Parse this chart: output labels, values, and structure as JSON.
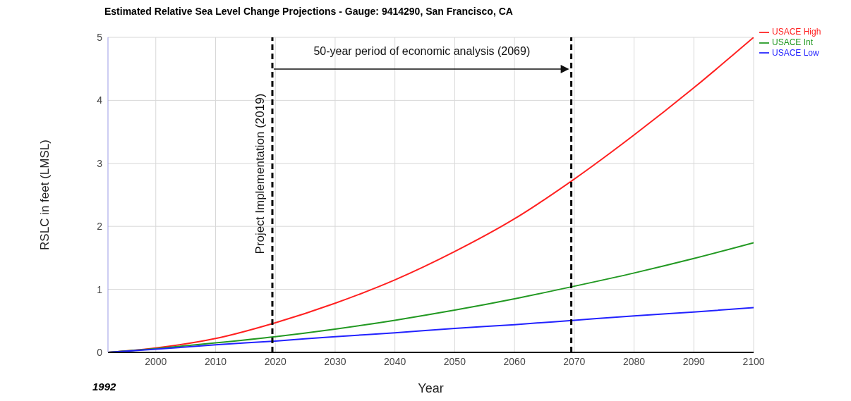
{
  "chart_data": {
    "type": "line",
    "title": "Estimated Relative Sea Level Change Projections - Gauge: 9414290, San Francisco, CA",
    "xlabel": "Year",
    "ylabel": "RSLC in feet (LMSL)",
    "x": [
      1992,
      2000,
      2010,
      2020,
      2030,
      2040,
      2050,
      2060,
      2070,
      2080,
      2090,
      2100
    ],
    "series": [
      {
        "name": "USACE High",
        "color": "#ff2020",
        "values": [
          0,
          0.07,
          0.22,
          0.47,
          0.78,
          1.15,
          1.6,
          2.12,
          2.75,
          3.45,
          4.2,
          5.0
        ]
      },
      {
        "name": "USACE Int",
        "color": "#229922",
        "values": [
          0,
          0.06,
          0.15,
          0.25,
          0.37,
          0.51,
          0.67,
          0.85,
          1.05,
          1.26,
          1.49,
          1.74
        ]
      },
      {
        "name": "USACE Low",
        "color": "#2222ff",
        "values": [
          0,
          0.05,
          0.12,
          0.18,
          0.25,
          0.31,
          0.38,
          0.44,
          0.51,
          0.58,
          0.64,
          0.71
        ]
      }
    ],
    "xlim": [
      1992,
      2100
    ],
    "xticks": [
      2000,
      2010,
      2020,
      2030,
      2040,
      2050,
      2060,
      2070,
      2080,
      2090,
      2100
    ],
    "ylim": [
      0,
      5
    ],
    "yticks": [
      0,
      1,
      2,
      3,
      4,
      5
    ],
    "ref_lines": [
      {
        "axis": "x",
        "value": 2019.5,
        "label": "Project Implementation (2019)",
        "color": "#000000",
        "line_style": "dashed"
      },
      {
        "axis": "x",
        "value": 2069.5,
        "color": "#000000",
        "line_style": "dashed"
      }
    ],
    "annotations": [
      "50-year period of economic analysis (2069)",
      "1992"
    ],
    "grid": true,
    "legend": "top right",
    "marker": "none",
    "line_style": "solid"
  }
}
